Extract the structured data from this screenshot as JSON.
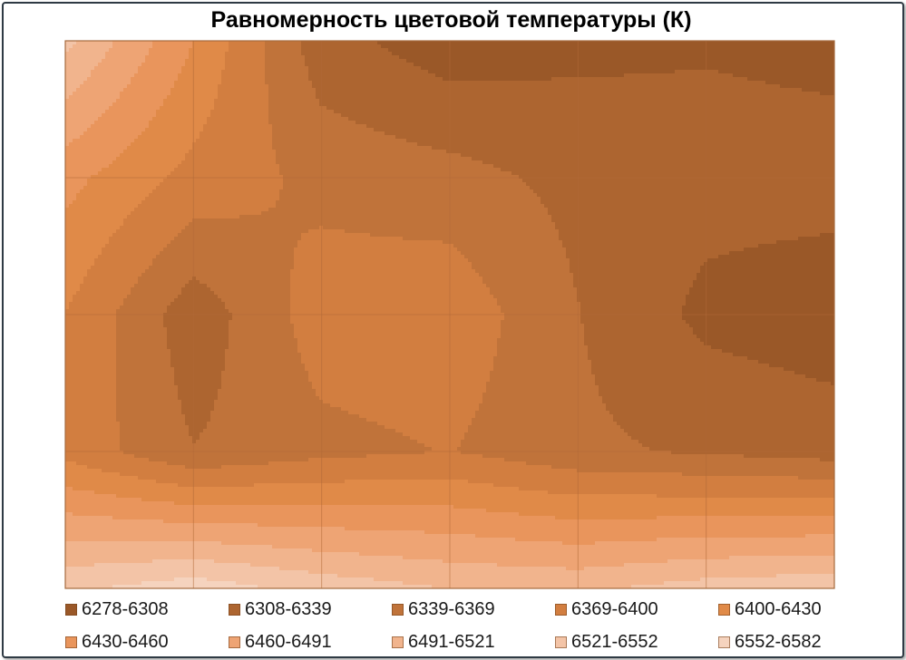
{
  "chart_data": {
    "type": "contour",
    "title": "Равномерность цветовой температуры (К)",
    "xlabel": "",
    "ylabel": "",
    "grid": true,
    "legend_position": "bottom",
    "x": [
      0,
      1,
      2,
      3,
      4,
      5,
      6
    ],
    "y": [
      0,
      1,
      2,
      3,
      4
    ],
    "z": [
      [
        6530,
        6430,
        6320,
        6290,
        6300,
        6305,
        6300
      ],
      [
        6440,
        6390,
        6360,
        6350,
        6330,
        6320,
        6320
      ],
      [
        6400,
        6320,
        6385,
        6390,
        6340,
        6300,
        6290
      ],
      [
        6390,
        6340,
        6360,
        6370,
        6345,
        6335,
        6325
      ],
      [
        6545,
        6570,
        6540,
        6520,
        6515,
        6535,
        6545
      ]
    ],
    "levels": [
      6278,
      6308,
      6339,
      6369,
      6400,
      6430,
      6460,
      6491,
      6521,
      6552,
      6582
    ],
    "legend": [
      {
        "label": "6278-6308",
        "color": "#9a5828"
      },
      {
        "label": "6308-6339",
        "color": "#ad6530"
      },
      {
        "label": "6339-6369",
        "color": "#c0733a"
      },
      {
        "label": "6369-6400",
        "color": "#d27e40"
      },
      {
        "label": "6400-6430",
        "color": "#e08a48"
      },
      {
        "label": "6430-6460",
        "color": "#e9955c"
      },
      {
        "label": "6460-6491",
        "color": "#eea474"
      },
      {
        "label": "6491-6521",
        "color": "#f1b48d"
      },
      {
        "label": "6521-6552",
        "color": "#f3c4a7"
      },
      {
        "label": "6552-6582",
        "color": "#f5d3be"
      }
    ]
  }
}
